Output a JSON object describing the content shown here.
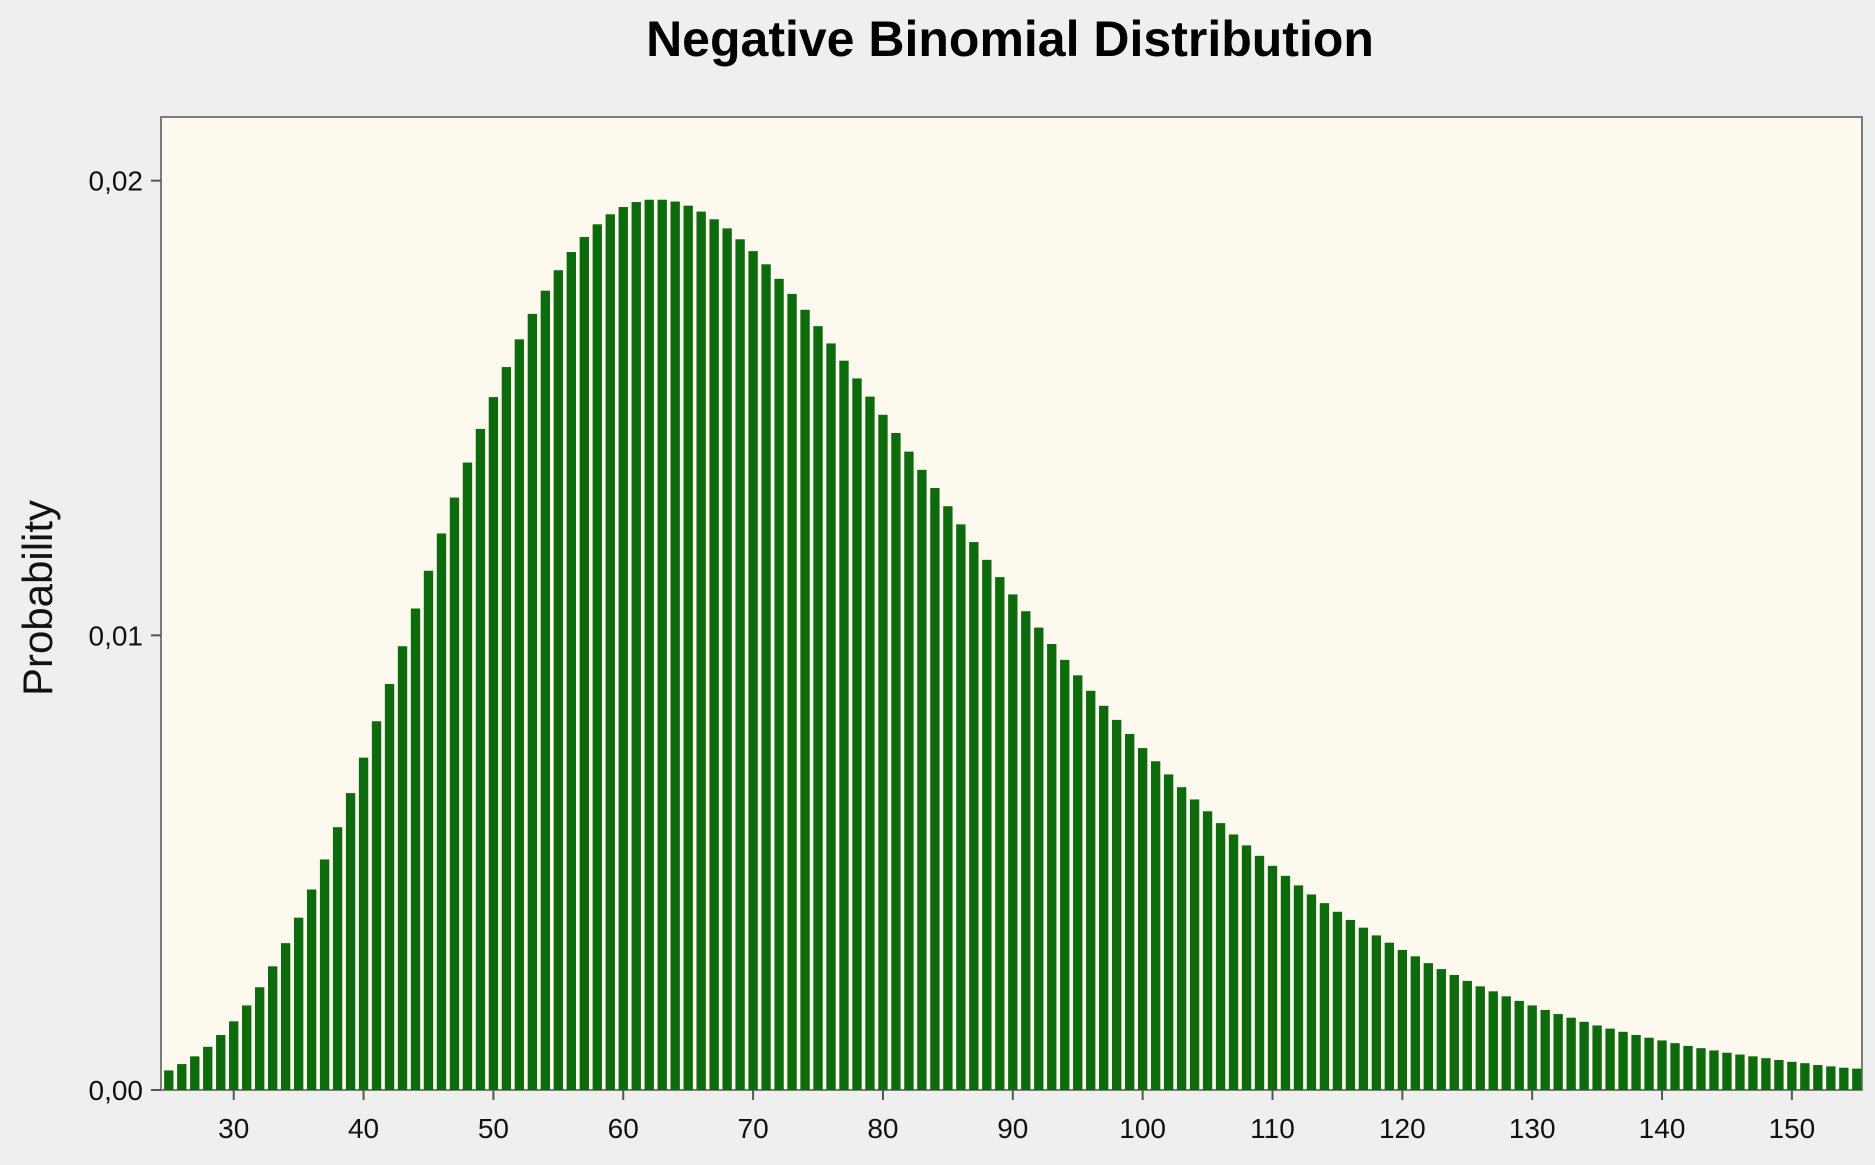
{
  "chart_data": {
    "type": "bar",
    "title": "Negative Binomial Distribution",
    "xlabel": "",
    "ylabel": "Probability",
    "xlim": [
      24.4,
      155.4
    ],
    "ylim": [
      0,
      0.0214
    ],
    "xticks": [
      30,
      40,
      50,
      60,
      70,
      80,
      90,
      100,
      110,
      120,
      130,
      140,
      150
    ],
    "xtick_labels": [
      "30",
      "40",
      "50",
      "60",
      "70",
      "80",
      "90",
      "100",
      "110",
      "120",
      "130",
      "140",
      "150"
    ],
    "yticks": [
      0,
      0.01,
      0.02
    ],
    "ytick_labels": [
      "0,00",
      "0,01",
      "0,02"
    ],
    "grid": false,
    "legend": "none",
    "bar_color": "#0d6b0d",
    "plot_background": "#fdf9ee",
    "figure_background": "#efefef",
    "series": [
      {
        "x": [
          25,
          26,
          27,
          28,
          29,
          30,
          31,
          32,
          33,
          34,
          35,
          36,
          37,
          38,
          39,
          40,
          41,
          42,
          43,
          44,
          45,
          46,
          47,
          48,
          49,
          50,
          51,
          52,
          53,
          54,
          55,
          56,
          57,
          58,
          59,
          60,
          61,
          62,
          63,
          64,
          65,
          66,
          67,
          68,
          69,
          70,
          71,
          72,
          73,
          74,
          75,
          76,
          77,
          78,
          79,
          80,
          81,
          82,
          83,
          84,
          85,
          86,
          87,
          88,
          89,
          90,
          91,
          92,
          93,
          94,
          95,
          96,
          97,
          98,
          99,
          100,
          101,
          102,
          103,
          104,
          105,
          106,
          107,
          108,
          109,
          110,
          111,
          112,
          113,
          114,
          115,
          116,
          117,
          118,
          119,
          120,
          121,
          122,
          123,
          124,
          125,
          126,
          127,
          128,
          129,
          130,
          131,
          132,
          133,
          134,
          135,
          136,
          137,
          138,
          139,
          140,
          141,
          142,
          143,
          144,
          145,
          146,
          147,
          148,
          149,
          150,
          151,
          152,
          153,
          154,
          155
        ],
        "values": [
          0.00043,
          0.00057,
          0.00074,
          0.00095,
          0.00121,
          0.00151,
          0.00186,
          0.00226,
          0.00272,
          0.00323,
          0.00379,
          0.00441,
          0.00507,
          0.00578,
          0.00653,
          0.00731,
          0.00811,
          0.00893,
          0.00976,
          0.01059,
          0.01142,
          0.01224,
          0.01303,
          0.0138,
          0.01454,
          0.01524,
          0.0159,
          0.01651,
          0.01707,
          0.01758,
          0.01803,
          0.01843,
          0.01876,
          0.01904,
          0.01926,
          0.01942,
          0.01953,
          0.01958,
          0.01958,
          0.01954,
          0.01945,
          0.01932,
          0.01915,
          0.01895,
          0.01871,
          0.01845,
          0.01816,
          0.01784,
          0.01751,
          0.01716,
          0.0168,
          0.01642,
          0.01604,
          0.01565,
          0.01525,
          0.01485,
          0.01445,
          0.01404,
          0.01364,
          0.01324,
          0.01284,
          0.01244,
          0.01205,
          0.01166,
          0.01128,
          0.0109,
          0.01053,
          0.01017,
          0.00981,
          0.00946,
          0.00912,
          0.00878,
          0.00845,
          0.00814,
          0.00783,
          0.00752,
          0.00723,
          0.00694,
          0.00666,
          0.00639,
          0.00613,
          0.00587,
          0.00562,
          0.00538,
          0.00515,
          0.00493,
          0.00471,
          0.0045,
          0.0043,
          0.00411,
          0.00392,
          0.00374,
          0.00357,
          0.0034,
          0.00324,
          0.00308,
          0.00294,
          0.00279,
          0.00266,
          0.00253,
          0.0024,
          0.00228,
          0.00217,
          0.00206,
          0.00196,
          0.00186,
          0.00176,
          0.00167,
          0.00159,
          0.0015,
          0.00142,
          0.00135,
          0.00128,
          0.00121,
          0.00115,
          0.00109,
          0.00103,
          0.00097,
          0.00092,
          0.00087,
          0.00082,
          0.00078,
          0.00074,
          0.0007,
          0.00066,
          0.00062,
          0.00059,
          0.00055,
          0.00052,
          0.00049,
          0.00047
        ]
      }
    ]
  }
}
